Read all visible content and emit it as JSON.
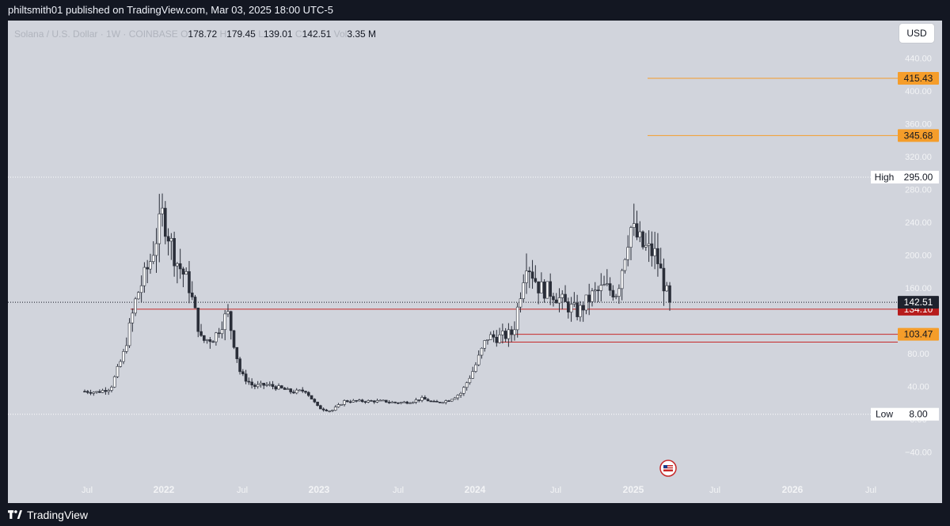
{
  "header": {
    "published": "philtsmith01 published on TradingView.com, Mar 03, 2025 18:00 UTC-5"
  },
  "legend": {
    "symbol": "Solana / U.S. Dollar · 1W · COINBASE",
    "o_label": "O",
    "o_value": "178.72",
    "h_label": "H",
    "h_value": "179.45",
    "l_label": "L",
    "l_value": "139.01",
    "c_label": "C",
    "c_value": "142.51",
    "vol_label": "Vol",
    "vol_value": "3.35 M"
  },
  "currency_button": "USD",
  "price_axis": {
    "ticks": [
      "440.00",
      "400.00",
      "360.00",
      "320.00",
      "280.00",
      "240.00",
      "200.00",
      "160.00",
      "80.00",
      "40.00",
      "0.00",
      "−40.00"
    ]
  },
  "time_axis": {
    "labels": [
      {
        "text": "Jul",
        "year": false
      },
      {
        "text": "2022",
        "year": true
      },
      {
        "text": "Jul",
        "year": false
      },
      {
        "text": "2023",
        "year": true
      },
      {
        "text": "Jul",
        "year": false
      },
      {
        "text": "2024",
        "year": true
      },
      {
        "text": "Jul",
        "year": false
      },
      {
        "text": "2025",
        "year": true
      },
      {
        "text": "Jul",
        "year": false
      },
      {
        "text": "2026",
        "year": true
      },
      {
        "text": "Jul",
        "year": false
      }
    ]
  },
  "markers": {
    "high_label": "High",
    "high_value": "295.00",
    "low_label": "Low",
    "low_value": "8.00",
    "last_price": "142.51"
  },
  "levels": [
    {
      "value": "415.43",
      "color": "#f59d2a",
      "kind": "target"
    },
    {
      "value": "345.68",
      "color": "#f59d2a",
      "kind": "target"
    },
    {
      "value": "134.10",
      "color": "#b71c1c",
      "kind": "support"
    },
    {
      "value": "103.47",
      "color": "#f59d2a",
      "kind": "support"
    }
  ],
  "colors": {
    "background": "#d1d4dc",
    "candle_up": "#ffffff",
    "candle_down": "#2a2e39",
    "target_line": "#f59d2a",
    "support_line": "#c62828"
  },
  "footer": {
    "brand": "TradingView"
  },
  "icons": {
    "event": "us-flag-icon",
    "logo": "tradingview-logo-icon"
  },
  "chart_data": {
    "type": "candlestick",
    "title": "Solana / U.S. Dollar · 1W · COINBASE",
    "ylim": [
      -60,
      470
    ],
    "x": [
      "2021-06",
      "2021-07",
      "2021-08",
      "2021-09",
      "2021-10",
      "2021-11",
      "2021-12",
      "2022-01",
      "2022-02",
      "2022-03",
      "2022-04",
      "2022-05",
      "2022-06",
      "2022-07",
      "2022-08",
      "2022-09",
      "2022-10",
      "2022-11",
      "2022-12",
      "2023-01",
      "2023-02",
      "2023-03",
      "2023-04",
      "2023-05",
      "2023-06",
      "2023-07",
      "2023-08",
      "2023-09",
      "2023-10",
      "2023-11",
      "2023-12",
      "2024-01",
      "2024-02",
      "2024-03",
      "2024-04",
      "2024-05",
      "2024-06",
      "2024-07",
      "2024-08",
      "2024-09",
      "2024-10",
      "2024-11",
      "2024-12",
      "2025-01",
      "2025-02",
      "2025-03"
    ],
    "close": [
      34,
      33,
      38,
      80,
      150,
      190,
      250,
      195,
      165,
      95,
      100,
      130,
      55,
      40,
      42,
      38,
      33,
      35,
      14,
      10,
      22,
      22,
      22,
      22,
      20,
      21,
      25,
      20,
      23,
      32,
      62,
      100,
      100,
      105,
      195,
      160,
      155,
      140,
      130,
      150,
      160,
      155,
      235,
      210,
      200,
      142.51
    ],
    "high": 295.0,
    "low": 8.0,
    "last": 142.51,
    "annotations": [
      "415.43",
      "345.68",
      "134.10",
      "103.47"
    ]
  }
}
